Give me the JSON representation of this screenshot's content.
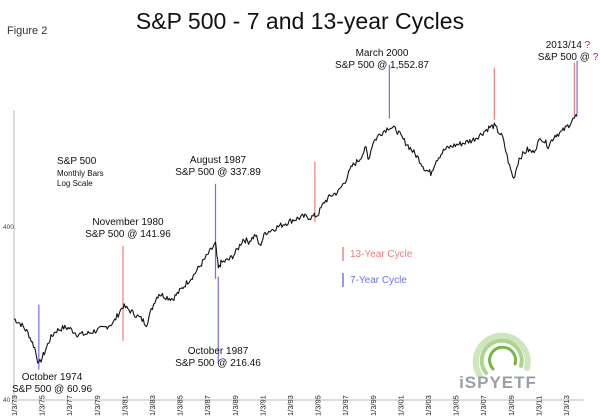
{
  "title": "S&P 500 - 7 and 13-year Cycles",
  "figure_label": "Figure 2",
  "colors": {
    "thirteen_year": "#f07a7a",
    "seven_year": "#6f6fe6",
    "price": "#111111",
    "question": "#e01010",
    "logo_green": "#74b843"
  },
  "chart_data": {
    "type": "line",
    "series_description_lines": [
      "S&P 500",
      "Monthly Bars",
      "Log Scale"
    ],
    "y_scale": "log",
    "ylim": [
      40,
      1900
    ],
    "xlim": [
      1973.0,
      2014.3
    ],
    "y_ticks": [
      "40",
      "400"
    ],
    "x_ticks": [
      "1/3/73",
      "1/3/75",
      "1/3/77",
      "1/3/79",
      "1/3/81",
      "1/3/83",
      "1/3/85",
      "1/3/87",
      "1/3/89",
      "1/3/91",
      "1/3/93",
      "1/3/95",
      "1/3/97",
      "1/3/99",
      "1/3/01",
      "1/3/03",
      "1/3/05",
      "1/3/07",
      "1/3/09",
      "1/3/11",
      "1/3/13"
    ],
    "series": [
      {
        "x": [
          1973.0,
          1973.5,
          1974.0,
          1974.5,
          1974.8,
          1975.2,
          1975.6,
          1976.0,
          1976.6,
          1977.0,
          1977.6,
          1978.2,
          1978.8,
          1979.5,
          1980.2,
          1980.9,
          1981.6,
          1982.2,
          1982.6,
          1983.2,
          1983.5,
          1984.0,
          1984.5,
          1985.0,
          1985.5,
          1986.0,
          1986.5,
          1987.0,
          1987.6,
          1987.8,
          1988.0,
          1988.6,
          1989.0,
          1989.6,
          1990.0,
          1990.5,
          1990.8,
          1991.2,
          1991.8,
          1992.5,
          1993.2,
          1994.0,
          1994.5,
          1995.0,
          1995.5,
          1996.0,
          1996.5,
          1997.0,
          1997.5,
          1998.0,
          1998.5,
          1998.7,
          1999.0,
          1999.5,
          2000.2,
          2000.7,
          2001.2,
          2001.8,
          2002.3,
          2002.8,
          2003.2,
          2003.6,
          2004.2,
          2004.8,
          2005.5,
          2006.2,
          2006.8,
          2007.4,
          2007.8,
          2008.4,
          2008.9,
          2009.2,
          2009.6,
          2010.2,
          2010.6,
          2011.2,
          2011.7,
          2012.2,
          2012.7,
          2013.2,
          2013.5,
          2013.8
        ],
        "y": [
          118,
          110,
          98,
          80,
          64,
          75,
          90,
          100,
          105,
          104,
          96,
          96,
          100,
          104,
          112,
          140,
          128,
          118,
          110,
          150,
          165,
          158,
          154,
          170,
          190,
          210,
          240,
          274,
          320,
          230,
          248,
          260,
          280,
          340,
          330,
          360,
          310,
          370,
          390,
          415,
          440,
          460,
          455,
          470,
          560,
          610,
          640,
          740,
          900,
          980,
          1140,
          990,
          1230,
          1380,
          1520,
          1460,
          1280,
          1120,
          1000,
          860,
          820,
          980,
          1120,
          1180,
          1220,
          1270,
          1370,
          1500,
          1540,
          1320,
          900,
          760,
          1000,
          1120,
          1080,
          1320,
          1180,
          1360,
          1420,
          1560,
          1670,
          1740
        ]
      }
    ],
    "annotations": [
      {
        "cycle": "7-Year Cycle",
        "x": 1974.8,
        "lines": [
          "October 1974",
          "S&P 500 @ 60.96"
        ]
      },
      {
        "cycle": "13-Year Cycle",
        "x": 1980.9,
        "lines": [
          "November 1980",
          "S&P 500 @ 141.96"
        ]
      },
      {
        "cycle": "7-Year Cycle",
        "x": 1987.6,
        "lines": [
          "August 1987",
          "S&P 500 @ 337.89"
        ]
      },
      {
        "cycle": "7-Year Cycle",
        "x": 1987.8,
        "lines": [
          "October 1987",
          "S&P 500 @ 216.46"
        ]
      },
      {
        "cycle": "13-Year Cycle",
        "x": 1994.8,
        "lines": []
      },
      {
        "cycle": "7-Year Cycle",
        "x": 2000.2,
        "lines": [
          "March 2000",
          "S&P 500 @ 1,552.87"
        ]
      },
      {
        "cycle": "13-Year Cycle",
        "x": 2007.8,
        "lines": []
      },
      {
        "cycle": "13-Year Cycle",
        "x": 2013.6,
        "lines": [
          "2013/14",
          "S&P 500 @"
        ]
      },
      {
        "cycle": "7-Year Cycle",
        "x": 2013.8,
        "lines": []
      }
    ],
    "question_mark": "?",
    "legend": [
      {
        "label": "13-Year Cycle",
        "color": "#f07a7a"
      },
      {
        "label": "7-Year Cycle",
        "color": "#6f6fe6"
      }
    ],
    "legend_position": "center-right"
  },
  "logo_text": "iSPYETF"
}
